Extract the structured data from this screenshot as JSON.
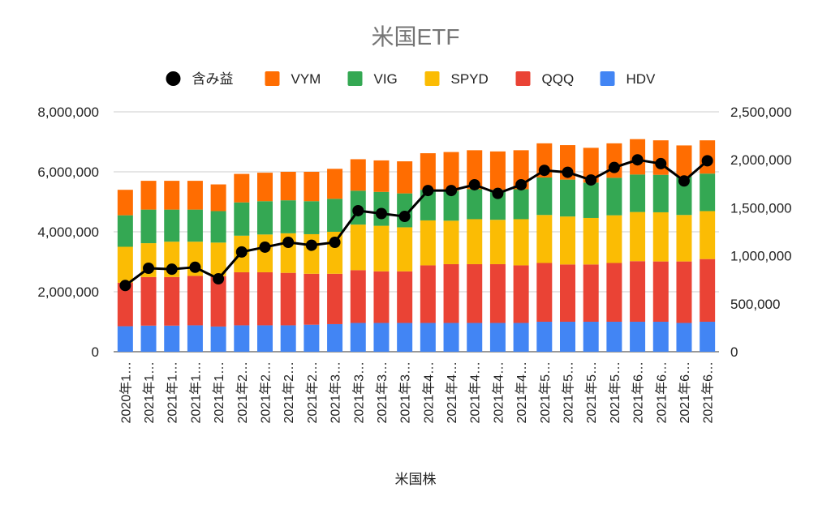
{
  "chart_data": {
    "type": "bar",
    "title": "米国ETF",
    "xlabel": "米国株",
    "ylabel": "",
    "ylim": [
      0,
      8000000
    ],
    "y2lim": [
      0,
      2500000
    ],
    "yticks": [
      "0",
      "2,000,000",
      "4,000,000",
      "6,000,000",
      "8,000,000"
    ],
    "y2ticks": [
      "0",
      "500,000",
      "1,000,000",
      "1,500,000",
      "2,000,000",
      "2,500,000"
    ],
    "grid": true,
    "legend_position": "top",
    "categories": [
      "2020年1…",
      "2021年1…",
      "2021年1…",
      "2021年1…",
      "2021年1…",
      "2021年2…",
      "2021年2…",
      "2021年2…",
      "2021年2…",
      "2021年3…",
      "2021年3…",
      "2021年3…",
      "2021年3…",
      "2021年4…",
      "2021年4…",
      "2021年4…",
      "2021年4…",
      "2021年4…",
      "2021年5…",
      "2021年5…",
      "2021年5…",
      "2021年5…",
      "2021年6…",
      "2021年6…",
      "2021年6…",
      "2021年6…"
    ],
    "legend_order": [
      "含み益",
      "VYM",
      "VIG",
      "SPYD",
      "QQQ",
      "HDV"
    ],
    "series": [
      {
        "name": "HDV",
        "color": "#4285f4",
        "type": "bar",
        "values": [
          850000,
          870000,
          870000,
          880000,
          840000,
          880000,
          880000,
          880000,
          900000,
          920000,
          960000,
          960000,
          960000,
          960000,
          960000,
          960000,
          960000,
          960000,
          1000000,
          1000000,
          1000000,
          1000000,
          1000000,
          1000000,
          960000,
          1000000
        ]
      },
      {
        "name": "QQQ",
        "color": "#ea4335",
        "type": "bar",
        "values": [
          1450000,
          1620000,
          1620000,
          1650000,
          1680000,
          1770000,
          1770000,
          1750000,
          1700000,
          1680000,
          1760000,
          1720000,
          1720000,
          1920000,
          1960000,
          1960000,
          1960000,
          1920000,
          1960000,
          1910000,
          1910000,
          1960000,
          2020000,
          2010000,
          2050000,
          2090000
        ]
      },
      {
        "name": "SPYD",
        "color": "#fbbc04",
        "type": "bar",
        "values": [
          1200000,
          1130000,
          1180000,
          1140000,
          1120000,
          1220000,
          1260000,
          1320000,
          1320000,
          1400000,
          1520000,
          1520000,
          1470000,
          1500000,
          1450000,
          1500000,
          1480000,
          1540000,
          1600000,
          1600000,
          1550000,
          1590000,
          1640000,
          1640000,
          1550000,
          1600000
        ]
      },
      {
        "name": "VIG",
        "color": "#34a853",
        "type": "bar",
        "values": [
          1050000,
          1120000,
          1070000,
          1070000,
          1050000,
          1110000,
          1110000,
          1100000,
          1100000,
          1100000,
          1130000,
          1130000,
          1130000,
          1020000,
          1000000,
          1000000,
          1000000,
          1000000,
          1250000,
          1230000,
          1180000,
          1250000,
          1250000,
          1250000,
          1280000,
          1250000
        ]
      },
      {
        "name": "VYM",
        "color": "#ff6d01",
        "type": "bar",
        "values": [
          850000,
          960000,
          960000,
          960000,
          890000,
          950000,
          950000,
          950000,
          980000,
          1000000,
          1050000,
          1050000,
          1070000,
          1220000,
          1290000,
          1300000,
          1280000,
          1300000,
          1140000,
          1150000,
          1160000,
          1150000,
          1180000,
          1150000,
          1040000,
          1110000
        ]
      },
      {
        "name": "含み益",
        "color": "#000000",
        "type": "line",
        "axis": "right",
        "values": [
          690000,
          870000,
          860000,
          880000,
          760000,
          1040000,
          1090000,
          1140000,
          1110000,
          1140000,
          1470000,
          1440000,
          1410000,
          1680000,
          1680000,
          1740000,
          1650000,
          1740000,
          1890000,
          1870000,
          1790000,
          1920000,
          2000000,
          1960000,
          1780000,
          1990000
        ]
      }
    ]
  }
}
